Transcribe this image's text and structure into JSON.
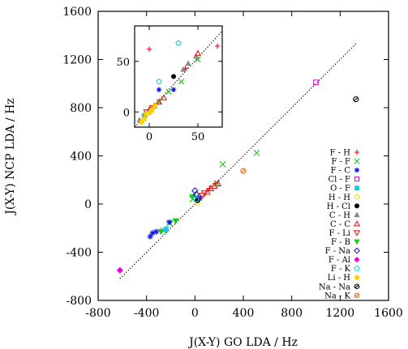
{
  "chart_data": {
    "type": "scatter",
    "xlabel": "J(X-Y) GO LDA / Hz",
    "ylabel": "J(X-Y) NCP LDA / Hz",
    "xlim": [
      -800,
      1600
    ],
    "ylim": [
      -800,
      1600
    ],
    "x_ticks": [
      -800,
      -400,
      0,
      400,
      800,
      1200,
      1600
    ],
    "y_ticks": [
      -800,
      -400,
      0,
      400,
      800,
      1200,
      1600
    ],
    "grid": false,
    "legend_position": "right-inside",
    "reference_line": {
      "style": "dotted",
      "from": [
        -620,
        -620
      ],
      "to": [
        1340,
        1340
      ]
    },
    "inset": {
      "xlim": [
        -15,
        75
      ],
      "ylim": [
        -15,
        85
      ],
      "x_ticks": [
        0,
        50
      ],
      "y_ticks": [
        0,
        50
      ],
      "x_tick_labels": [
        "0",
        "50"
      ],
      "y_tick_labels": [
        "0",
        "50"
      ],
      "reference_line": {
        "from": [
          -15,
          -15
        ],
        "to": [
          75,
          80
        ]
      }
    },
    "series": [
      {
        "name": "F - H",
        "marker": "plus",
        "color": "#e8000b",
        "points": [
          [
            120,
            130
          ],
          [
            170,
            170
          ]
        ],
        "inset_points": [
          [
            0,
            62
          ],
          [
            37,
            43
          ],
          [
            70,
            65
          ]
        ]
      },
      {
        "name": "F - F",
        "marker": "x",
        "color": "#1ec51e",
        "points": [
          [
            -260,
            -220
          ],
          [
            -210,
            -160
          ],
          [
            -20,
            40
          ],
          [
            30,
            50
          ],
          [
            180,
            170
          ],
          [
            230,
            330
          ],
          [
            510,
            425
          ]
        ],
        "inset_points": [
          [
            2,
            2
          ],
          [
            10,
            10
          ],
          [
            20,
            20
          ],
          [
            33,
            30
          ],
          [
            50,
            52
          ]
        ]
      },
      {
        "name": "F - C",
        "marker": "star",
        "color": "#1010e0",
        "points": [
          [
            -370,
            -270
          ],
          [
            -350,
            -240
          ],
          [
            -320,
            -230
          ],
          [
            -210,
            -150
          ],
          [
            40,
            50
          ]
        ],
        "inset_points": [
          [
            10,
            22
          ],
          [
            25,
            22
          ]
        ]
      },
      {
        "name": "Cl - F",
        "marker": "square-open",
        "color": "#cc22cc",
        "points": [
          [
            1000,
            1010
          ]
        ],
        "inset_points": []
      },
      {
        "name": "O - F",
        "marker": "square",
        "color": "#1ec8e0",
        "points": [
          [
            -240,
            -210
          ]
        ],
        "inset_points": []
      },
      {
        "name": "H - H",
        "marker": "circle-open",
        "color": "#e6e600",
        "points": [
          [
            20,
            10
          ]
        ],
        "inset_points": [
          [
            -5,
            -5
          ],
          [
            0,
            0
          ]
        ]
      },
      {
        "name": "H - Cl",
        "marker": "circle",
        "color": "#000000",
        "points": [
          [
            20,
            30
          ]
        ],
        "inset_points": [
          [
            25,
            35
          ]
        ]
      },
      {
        "name": "C - H",
        "marker": "triangle-up",
        "color": "#888888",
        "points": [],
        "inset_points": [
          [
            -10,
            -8
          ],
          [
            -5,
            -3
          ],
          [
            35,
            42
          ],
          [
            40,
            48
          ],
          [
            48,
            55
          ]
        ]
      },
      {
        "name": "C - C",
        "marker": "triangle-up-open",
        "color": "#e62020",
        "points": [
          [
            100,
            100
          ],
          [
            130,
            130
          ],
          [
            160,
            150
          ],
          [
            190,
            170
          ]
        ],
        "inset_points": [
          [
            0,
            2
          ],
          [
            5,
            6
          ],
          [
            10,
            10
          ],
          [
            15,
            14
          ],
          [
            50,
            58
          ]
        ]
      },
      {
        "name": "F - Li",
        "marker": "triangle-down-open",
        "color": "#e62020",
        "points": [
          [
            60,
            70
          ],
          [
            80,
            90
          ]
        ],
        "inset_points": [
          [
            -3,
            0
          ],
          [
            3,
            4
          ]
        ]
      },
      {
        "name": "F - B",
        "marker": "triangle-down",
        "color": "#1ec81e",
        "points": [
          [
            -280,
            -230
          ],
          [
            -160,
            -140
          ],
          [
            -20,
            60
          ]
        ],
        "inset_points": []
      },
      {
        "name": "F - Na",
        "marker": "diamond-open",
        "color": "#1e1ed2",
        "points": [
          [
            0,
            110
          ],
          [
            10,
            80
          ]
        ],
        "inset_points": []
      },
      {
        "name": "F - Al",
        "marker": "diamond",
        "color": "#e600e6",
        "points": [
          [
            -620,
            -550
          ]
        ],
        "inset_points": []
      },
      {
        "name": "F - K",
        "marker": "pentagon-open",
        "color": "#1ed2dc",
        "points": [
          [
            10,
            40
          ]
        ],
        "inset_points": [
          [
            10,
            30
          ],
          [
            -5,
            -3
          ],
          [
            30,
            68
          ]
        ]
      },
      {
        "name": "Li - H",
        "marker": "pentagon",
        "color": "#ffd200",
        "points": [],
        "inset_points": [
          [
            -8,
            -10
          ],
          [
            -5,
            -7
          ],
          [
            -3,
            -2
          ],
          [
            0,
            -1
          ],
          [
            3,
            2
          ],
          [
            6,
            6
          ]
        ]
      },
      {
        "name": "Na - Na",
        "marker": "circle-line",
        "color": "#000000",
        "points": [
          [
            1330,
            870
          ]
        ],
        "inset_points": []
      },
      {
        "name": "Na - K",
        "marker": "circle-line",
        "color": "#e66a14",
        "points": [
          [
            400,
            275
          ]
        ],
        "inset_points": []
      }
    ]
  }
}
